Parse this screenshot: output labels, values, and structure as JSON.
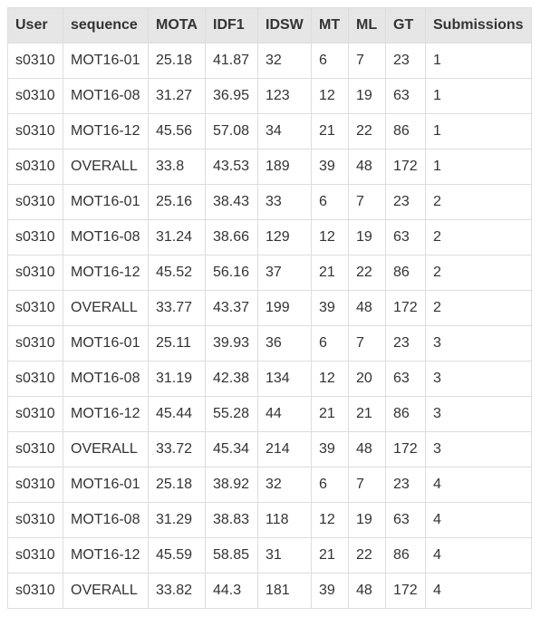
{
  "table": {
    "columns": [
      "User",
      "sequence",
      "MOTA",
      "IDF1",
      "IDSW",
      "MT",
      "ML",
      "GT",
      "Submissions"
    ],
    "rows": [
      [
        "s0310",
        "MOT16-01",
        "25.18",
        "41.87",
        "32",
        "6",
        "7",
        "23",
        "1"
      ],
      [
        "s0310",
        "MOT16-08",
        "31.27",
        "36.95",
        "123",
        "12",
        "19",
        "63",
        "1"
      ],
      [
        "s0310",
        "MOT16-12",
        "45.56",
        "57.08",
        "34",
        "21",
        "22",
        "86",
        "1"
      ],
      [
        "s0310",
        "OVERALL",
        "33.8",
        "43.53",
        "189",
        "39",
        "48",
        "172",
        "1"
      ],
      [
        "s0310",
        "MOT16-01",
        "25.16",
        "38.43",
        "33",
        "6",
        "7",
        "23",
        "2"
      ],
      [
        "s0310",
        "MOT16-08",
        "31.24",
        "38.66",
        "129",
        "12",
        "19",
        "63",
        "2"
      ],
      [
        "s0310",
        "MOT16-12",
        "45.52",
        "56.16",
        "37",
        "21",
        "22",
        "86",
        "2"
      ],
      [
        "s0310",
        "OVERALL",
        "33.77",
        "43.37",
        "199",
        "39",
        "48",
        "172",
        "2"
      ],
      [
        "s0310",
        "MOT16-01",
        "25.11",
        "39.93",
        "36",
        "6",
        "7",
        "23",
        "3"
      ],
      [
        "s0310",
        "MOT16-08",
        "31.19",
        "42.38",
        "134",
        "12",
        "20",
        "63",
        "3"
      ],
      [
        "s0310",
        "MOT16-12",
        "45.44",
        "55.28",
        "44",
        "21",
        "21",
        "86",
        "3"
      ],
      [
        "s0310",
        "OVERALL",
        "33.72",
        "45.34",
        "214",
        "39",
        "48",
        "172",
        "3"
      ],
      [
        "s0310",
        "MOT16-01",
        "25.18",
        "38.92",
        "32",
        "6",
        "7",
        "23",
        "4"
      ],
      [
        "s0310",
        "MOT16-08",
        "31.29",
        "38.83",
        "118",
        "12",
        "19",
        "63",
        "4"
      ],
      [
        "s0310",
        "MOT16-12",
        "45.59",
        "58.85",
        "31",
        "21",
        "22",
        "86",
        "4"
      ],
      [
        "s0310",
        "OVERALL",
        "33.82",
        "44.3",
        "181",
        "39",
        "48",
        "172",
        "4"
      ]
    ]
  }
}
